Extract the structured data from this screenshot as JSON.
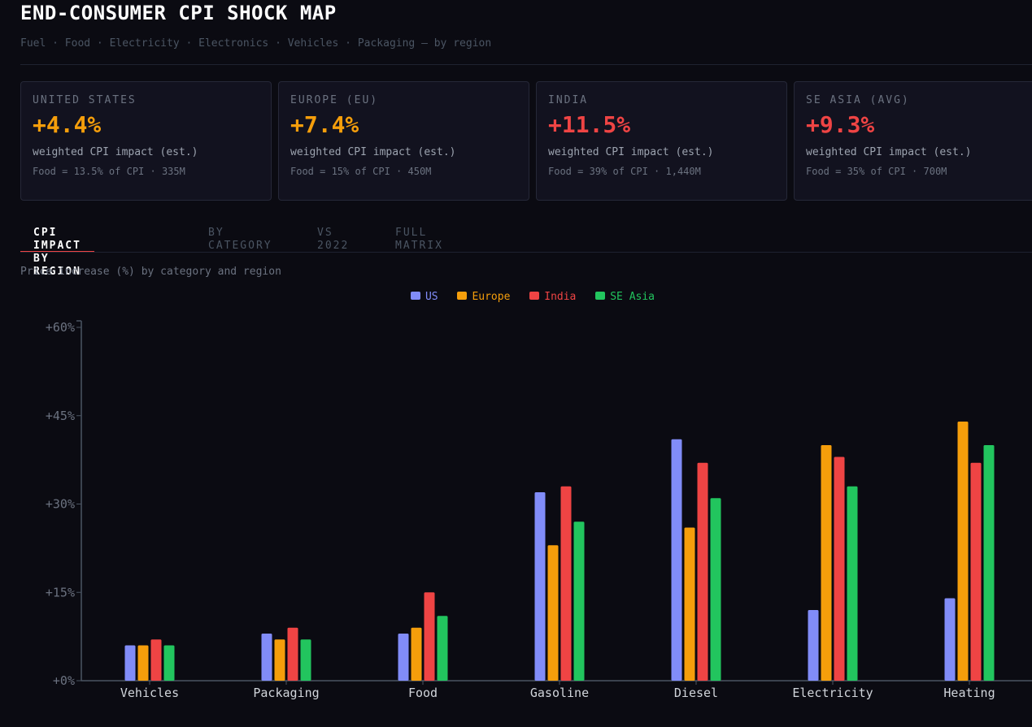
{
  "header": {
    "title": "END-CONSUMER CPI SHOCK MAP",
    "subtitle": "Fuel · Food · Electricity · Electronics · Vehicles · Packaging — by region"
  },
  "cards": [
    {
      "region": "UNITED STATES",
      "value": "+4.4%",
      "label": "weighted CPI impact (est.)",
      "food": "Food = 13.5% of CPI · 335M",
      "color": "#f59e0b"
    },
    {
      "region": "EUROPE (EU)",
      "value": "+7.4%",
      "label": "weighted CPI impact (est.)",
      "food": "Food = 15% of CPI · 450M",
      "color": "#f59e0b"
    },
    {
      "region": "INDIA",
      "value": "+11.5%",
      "label": "weighted CPI impact (est.)",
      "food": "Food = 39% of CPI · 1,440M",
      "color": "#ef4444"
    },
    {
      "region": "SE ASIA (AVG)",
      "value": "+9.3%",
      "label": "weighted CPI impact (est.)",
      "food": "Food = 35% of CPI · 700M",
      "color": "#ef4444"
    }
  ],
  "tabs": [
    "CPI IMPACT BY REGION",
    "BY CATEGORY",
    "VS 2022",
    "FULL MATRIX"
  ],
  "chart_data": {
    "type": "bar",
    "title": "Price increase (%) by category and region",
    "xlabel": "",
    "ylabel": "",
    "ylim": [
      0,
      60
    ],
    "yticks": [
      0,
      15,
      30,
      45,
      60
    ],
    "ytick_labels": [
      "+0%",
      "+15%",
      "+30%",
      "+45%",
      "+60%"
    ],
    "legend_position": "top-center",
    "categories": [
      "Vehicles",
      "Packaging",
      "Food",
      "Gasoline",
      "Diesel",
      "Electricity",
      "Heating"
    ],
    "series": [
      {
        "name": "US",
        "color": "#818cf8",
        "values": [
          6,
          8,
          8,
          32,
          41,
          12,
          14
        ]
      },
      {
        "name": "Europe",
        "color": "#f59e0b",
        "values": [
          6,
          7,
          9,
          23,
          26,
          40,
          44
        ]
      },
      {
        "name": "India",
        "color": "#ef4444",
        "values": [
          7,
          9,
          15,
          33,
          37,
          38,
          37
        ]
      },
      {
        "name": "SE Asia",
        "color": "#22c55e",
        "values": [
          6,
          7,
          11,
          27,
          31,
          33,
          40
        ]
      }
    ]
  }
}
